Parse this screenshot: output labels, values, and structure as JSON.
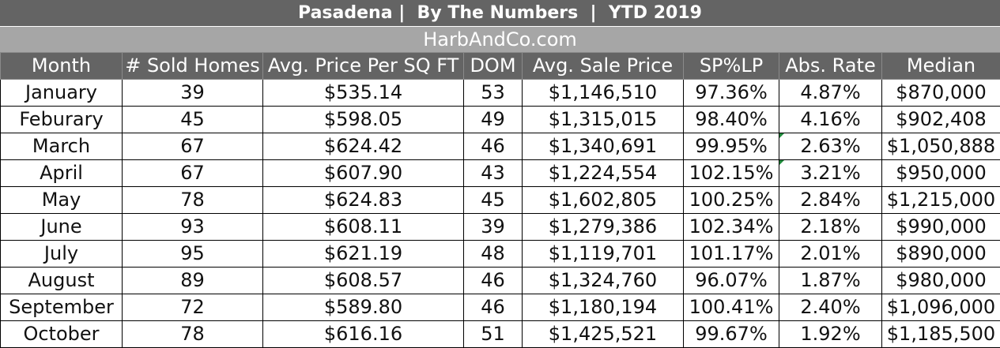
{
  "header": {
    "title": "Pasadena |  By The Numbers  |  YTD 2019",
    "subtitle": "HarbAndCo.com"
  },
  "table": {
    "columns": [
      "Month",
      "# Sold Homes",
      "Avg. Price Per SQ FT",
      "DOM",
      "Avg. Sale Price",
      "SP%LP",
      "Abs. Rate",
      "Median"
    ],
    "rows": [
      [
        "January",
        "39",
        "$535.14",
        "53",
        "$1,146,510",
        "97.36%",
        "4.87%",
        "$870,000"
      ],
      [
        "Feburary",
        "45",
        "$598.05",
        "49",
        "$1,315,015",
        "98.40%",
        "4.16%",
        "$902,408"
      ],
      [
        "March",
        "67",
        "$624.42",
        "46",
        "$1,340,691",
        "99.95%",
        "2.63%",
        "$1,050,888"
      ],
      [
        "April",
        "67",
        "$607.90",
        "43",
        "$1,224,554",
        "102.15%",
        "3.21%",
        "$950,000"
      ],
      [
        "May",
        "78",
        "$624.83",
        "45",
        "$1,602,805",
        "100.25%",
        "2.84%",
        "$1,215,000"
      ],
      [
        "June",
        "93",
        "$608.11",
        "39",
        "$1,279,386",
        "102.34%",
        "2.18%",
        "$990,000"
      ],
      [
        "July",
        "95",
        "$621.19",
        "48",
        "$1,119,701",
        "101.17%",
        "2.01%",
        "$890,000"
      ],
      [
        "August",
        "89",
        "$608.57",
        "46",
        "$1,324,760",
        "96.07%",
        "1.87%",
        "$980,000"
      ],
      [
        "September",
        "72",
        "$589.80",
        "46",
        "$1,180,194",
        "100.41%",
        "2.40%",
        "$1,096,000"
      ],
      [
        "October",
        "78",
        "$616.16",
        "51",
        "$1,425,521",
        "99.67%",
        "1.92%",
        "$1,185,500"
      ]
    ]
  },
  "colors": {
    "header_bg": "#646464",
    "subheader_bg": "#a6a6a6",
    "cell_marker": "#1f8a3b"
  }
}
